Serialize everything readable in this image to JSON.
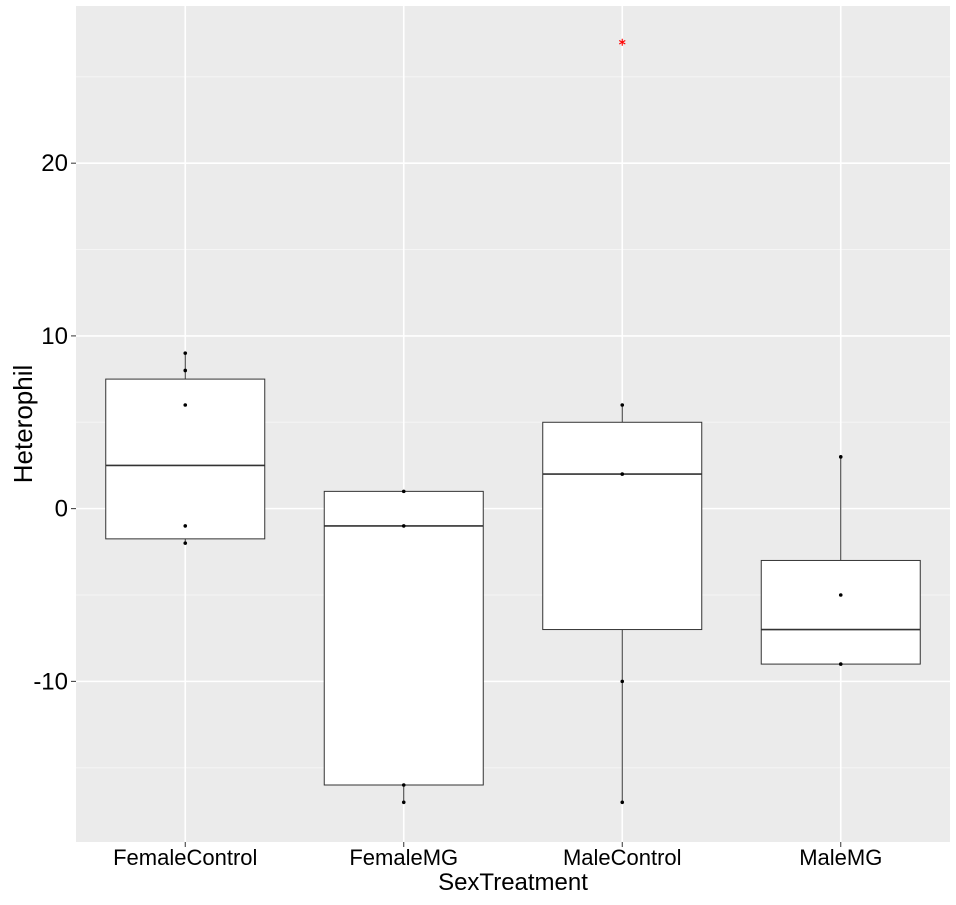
{
  "chart_data": {
    "type": "box",
    "title": "",
    "xlabel": "SexTreatment",
    "ylabel": "Heterophil",
    "ylim": [
      -19.3,
      29.1
    ],
    "yticks": [
      -10,
      0,
      10,
      20
    ],
    "grid": true,
    "legend": "none",
    "categories": [
      "FemaleControl",
      "FemaleMG",
      "MaleControl",
      "MaleMG"
    ],
    "boxes": [
      {
        "category": "FemaleControl",
        "q1": -1.75,
        "median": 2.5,
        "q3": 7.5,
        "whisker_low": -2,
        "whisker_high": 9
      },
      {
        "category": "FemaleMG",
        "q1": -16,
        "median": -1,
        "q3": 1,
        "whisker_low": -17,
        "whisker_high": 1
      },
      {
        "category": "MaleControl",
        "q1": -7,
        "median": 2,
        "q3": 5,
        "whisker_low": -17,
        "whisker_high": 6
      },
      {
        "category": "MaleMG",
        "q1": -9,
        "median": -7,
        "q3": -3,
        "whisker_low": -9,
        "whisker_high": 3
      }
    ],
    "points": [
      {
        "category": "FemaleControl",
        "values": [
          9,
          8,
          6,
          -1,
          -2
        ]
      },
      {
        "category": "FemaleMG",
        "values": [
          1,
          -1,
          -16,
          -17
        ]
      },
      {
        "category": "MaleControl",
        "values": [
          6,
          2,
          -10,
          -17
        ]
      },
      {
        "category": "MaleMG",
        "values": [
          3,
          -5,
          -9
        ]
      }
    ],
    "outliers": [
      {
        "category": "MaleControl",
        "value": 27
      }
    ],
    "colors": {
      "panel": "#EBEBEB",
      "grid_major": "#FFFFFF",
      "grid_minor": "#F5F5F5",
      "box_fill": "#FFFFFF",
      "box_stroke": "#333333",
      "point": "#000000",
      "outlier": "#FF0000",
      "text": "#000000"
    }
  }
}
